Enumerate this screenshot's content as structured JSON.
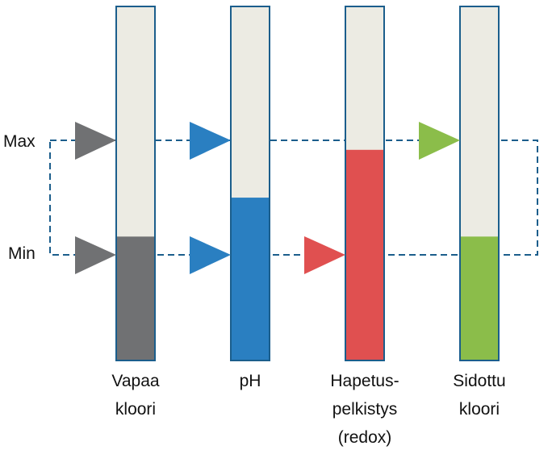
{
  "levels": {
    "max_label": "Max",
    "min_label": "Min"
  },
  "colors": {
    "tube_bg": "#ecebe3",
    "tube_border": "#1b5e8c",
    "range_box": "#1b5e8c"
  },
  "bars": [
    {
      "label_lines": [
        "Vapaa",
        "kloori"
      ],
      "color": "#707173",
      "fill_fraction": 0.35,
      "markers": [
        "max",
        "min"
      ]
    },
    {
      "label_lines": [
        "pH"
      ],
      "color": "#2a7fc1",
      "fill_fraction": 0.46,
      "markers": [
        "max",
        "min"
      ]
    },
    {
      "label_lines": [
        "Hapetus-",
        "pelkistys",
        "(redox)"
      ],
      "color": "#e05050",
      "fill_fraction": 0.595,
      "markers": [
        "min"
      ]
    },
    {
      "label_lines": [
        "Sidottu",
        "kloori"
      ],
      "color": "#8bbd4a",
      "fill_fraction": 0.35,
      "markers": [
        "max"
      ]
    }
  ]
}
